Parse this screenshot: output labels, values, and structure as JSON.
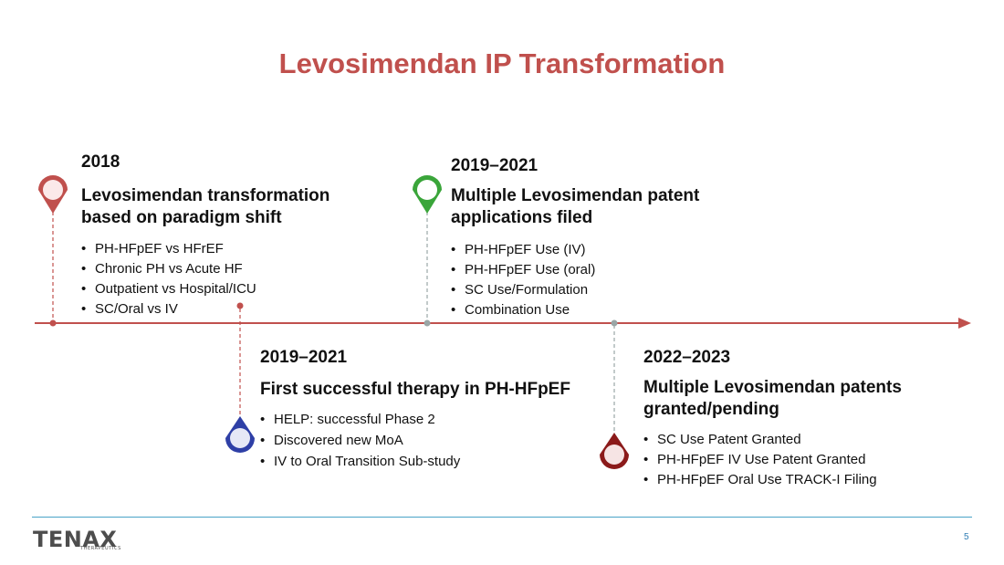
{
  "title": "Levosimendan IP Transformation",
  "colors": {
    "title": "#c0504d",
    "axis": "#c0504d",
    "pin_2018": "#c0504d",
    "pin_green": "#3aa53a",
    "pin_blue": "#2e3fa6",
    "pin_darkred": "#8b1a1a",
    "connector": "#9aa6a6"
  },
  "events": [
    {
      "year": "2018",
      "headline": "Levosimendan transformation based on paradigm shift",
      "bullets": [
        "PH-HFpEF vs HFrEF",
        "Chronic PH vs Acute HF",
        "Outpatient vs Hospital/ICU",
        "SC/Oral vs IV"
      ],
      "pin_icon": "map-pin-icon"
    },
    {
      "year": "2019–2021",
      "headline": "First successful therapy in PH-HFpEF",
      "bullets": [
        "HELP:  successful Phase 2",
        "Discovered new MoA",
        "IV to Oral Transition Sub-study"
      ],
      "pin_icon": "map-pin-icon"
    },
    {
      "year": "2019–2021",
      "headline": "Multiple Levosimendan patent applications filed",
      "bullets": [
        "PH-HFpEF Use (IV)",
        "PH-HFpEF Use (oral)",
        "SC Use/Formulation",
        "Combination Use"
      ],
      "pin_icon": "map-pin-icon"
    },
    {
      "year": "2022–2023",
      "headline": "Multiple Levosimendan patents granted/pending",
      "bullets": [
        "SC Use Patent Granted",
        "PH-HFpEF IV Use Patent Granted",
        "PH-HFpEF Oral Use TRACK-I Filing"
      ],
      "pin_icon": "map-pin-icon"
    }
  ],
  "footer": {
    "logo": "TENAX",
    "logo_sub": "THERAPEUTICS",
    "page_number": "5"
  }
}
